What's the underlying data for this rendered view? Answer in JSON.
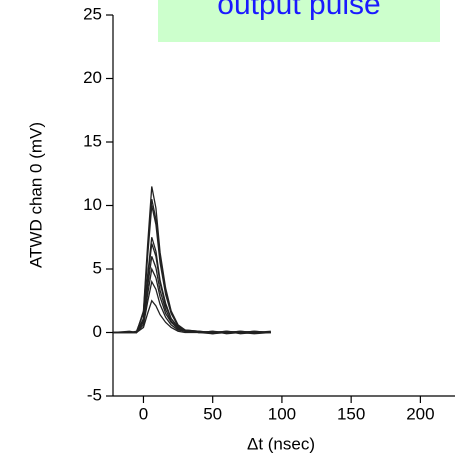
{
  "chart_data": {
    "type": "line",
    "title": "output pulse",
    "xlabel": "Δt (nsec)",
    "ylabel": "ATWD chan 0 (mV)",
    "xlim": [
      -22,
      225
    ],
    "ylim": [
      -5,
      25
    ],
    "xticks": [
      0,
      50,
      100,
      150,
      200
    ],
    "yticks": [
      -5,
      0,
      5,
      10,
      15,
      20,
      25
    ],
    "x": [
      -22,
      -10,
      -5,
      0,
      3,
      6,
      9,
      12,
      16,
      20,
      25,
      30,
      40,
      50,
      60,
      70,
      80,
      92
    ],
    "series": [
      {
        "color": "#222222",
        "values": [
          0,
          0,
          0,
          1.7,
          6.9,
          11.5,
          9.8,
          6.3,
          3.5,
          1.7,
          0.6,
          0.2,
          0.1,
          -0.1,
          0.1,
          0,
          0.1,
          0
        ]
      },
      {
        "color": "#222222",
        "values": [
          0,
          0.1,
          0,
          1.6,
          6.3,
          10.5,
          8.9,
          5.8,
          3.2,
          1.6,
          0.5,
          0.2,
          0,
          0.1,
          -0.1,
          0,
          0,
          0
        ]
      },
      {
        "color": "#222222",
        "values": [
          0,
          0,
          0.1,
          1.5,
          6,
          10,
          8.5,
          5.5,
          3,
          1.5,
          0.5,
          0.2,
          0.1,
          0,
          0.1,
          -0.1,
          0,
          0.1
        ]
      },
      {
        "color": "#222222",
        "values": [
          0,
          0,
          0,
          1.1,
          4.5,
          7.5,
          6.4,
          4.1,
          2.3,
          1.1,
          0.4,
          0.1,
          0,
          0.1,
          0,
          0,
          -0.1,
          0
        ]
      },
      {
        "color": "#222222",
        "values": [
          0,
          0,
          0,
          1,
          4.2,
          7,
          6,
          3.9,
          2.1,
          1.1,
          0.4,
          0.1,
          0.1,
          0,
          0,
          0.1,
          0,
          0
        ]
      },
      {
        "color": "#222222",
        "values": [
          0,
          0,
          0,
          0.9,
          3.6,
          6,
          5.1,
          3.3,
          1.8,
          0.9,
          0.3,
          0.1,
          0,
          -0.1,
          0,
          0,
          0.1,
          0
        ]
      },
      {
        "color": "#222222",
        "values": [
          0,
          0,
          0,
          0.8,
          3,
          5,
          4.3,
          2.8,
          1.5,
          0.8,
          0.3,
          0.1,
          0,
          0,
          0.1,
          0,
          0,
          0
        ]
      },
      {
        "color": "#222222",
        "values": [
          0,
          0,
          0,
          0.6,
          2.4,
          4,
          3.4,
          2.2,
          1.2,
          0.6,
          0.2,
          0.1,
          0,
          0,
          0,
          0.1,
          0,
          0
        ]
      },
      {
        "color": "#222222",
        "values": [
          0,
          0,
          0,
          0.4,
          1.5,
          2.5,
          2.1,
          1.4,
          0.8,
          0.4,
          0.1,
          0,
          0,
          0,
          0,
          0,
          0,
          0
        ]
      }
    ]
  }
}
